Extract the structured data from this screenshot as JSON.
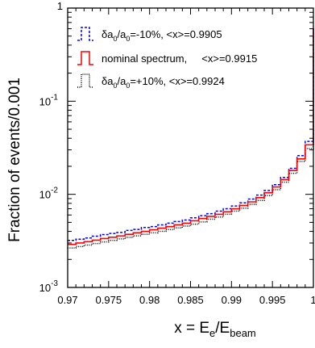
{
  "chart_data": {
    "type": "line",
    "step": true,
    "yscale": "log",
    "xlim": [
      0.97,
      1.0
    ],
    "ylim": [
      0.001,
      1
    ],
    "xlabel_main": "x = E",
    "xlabel_sub1": "e",
    "xlabel_mid": "/E",
    "xlabel_sub2": "beam",
    "ylabel": "Fraction of events/0.001",
    "x_ticks": [
      0.97,
      0.975,
      0.98,
      0.985,
      0.99,
      0.995,
      1.0
    ],
    "x_tick_labels": [
      "0.97",
      "0.975",
      "0.98",
      "0.985",
      "0.99",
      "0.995",
      "1"
    ],
    "y_ticks": [
      {
        "value": 0.001,
        "base": "10",
        "exp": "-3"
      },
      {
        "value": 0.01,
        "base": "10",
        "exp": "-2"
      },
      {
        "value": 0.1,
        "base": "10",
        "exp": "-1"
      },
      {
        "value": 1,
        "base": "1",
        "exp": ""
      }
    ],
    "bin_edges": [
      0.97,
      0.971,
      0.972,
      0.973,
      0.974,
      0.975,
      0.976,
      0.977,
      0.978,
      0.979,
      0.98,
      0.981,
      0.982,
      0.983,
      0.984,
      0.985,
      0.986,
      0.987,
      0.988,
      0.989,
      0.99,
      0.991,
      0.992,
      0.993,
      0.994,
      0.995,
      0.996,
      0.997,
      0.998,
      0.999,
      1.0
    ],
    "series": [
      {
        "legend_prefix": "δa",
        "legend_sub1": "0",
        "legend_mid": "/a",
        "legend_sub2": "0",
        "legend_rest": "=-10%, <x>=0.9905",
        "color": "#0000ff",
        "dash": "3,2",
        "values": [
          0.0032,
          0.0033,
          0.0034,
          0.00355,
          0.0037,
          0.0038,
          0.0039,
          0.0041,
          0.0042,
          0.0044,
          0.0045,
          0.0047,
          0.0049,
          0.0051,
          0.0053,
          0.0056,
          0.0059,
          0.0062,
          0.0066,
          0.007,
          0.0075,
          0.0081,
          0.0089,
          0.0098,
          0.011,
          0.0127,
          0.0152,
          0.019,
          0.026,
          0.037,
          0.64
        ]
      },
      {
        "legend_prefix": "nominal spectrum,",
        "legend_sub1": "",
        "legend_mid": "",
        "legend_sub2": "",
        "legend_rest": "     <x>=0.9915",
        "color": "#ff0000",
        "dash": "",
        "values": [
          0.0029,
          0.003,
          0.0031,
          0.00322,
          0.00335,
          0.00346,
          0.00358,
          0.00372,
          0.00386,
          0.004,
          0.00416,
          0.00433,
          0.0045,
          0.0047,
          0.0049,
          0.0052,
          0.0055,
          0.0058,
          0.0061,
          0.0065,
          0.007,
          0.0076,
          0.0083,
          0.0092,
          0.0104,
          0.012,
          0.0144,
          0.018,
          0.024,
          0.034,
          0.6
        ]
      },
      {
        "legend_prefix": "δa",
        "legend_sub1": "0",
        "legend_mid": "/a",
        "legend_sub2": "0",
        "legend_rest": "=+10%, <x>=0.9924",
        "color": "#000000",
        "dash": "1,1.5",
        "values": [
          0.00265,
          0.00275,
          0.00285,
          0.00296,
          0.00308,
          0.0032,
          0.00332,
          0.00345,
          0.00358,
          0.00372,
          0.00386,
          0.004,
          0.00418,
          0.00436,
          0.00456,
          0.00478,
          0.00505,
          0.0054,
          0.0057,
          0.0061,
          0.0066,
          0.0071,
          0.0078,
          0.0086,
          0.0097,
          0.0112,
          0.0135,
          0.0168,
          0.0225,
          0.031,
          0.59
        ]
      }
    ]
  }
}
